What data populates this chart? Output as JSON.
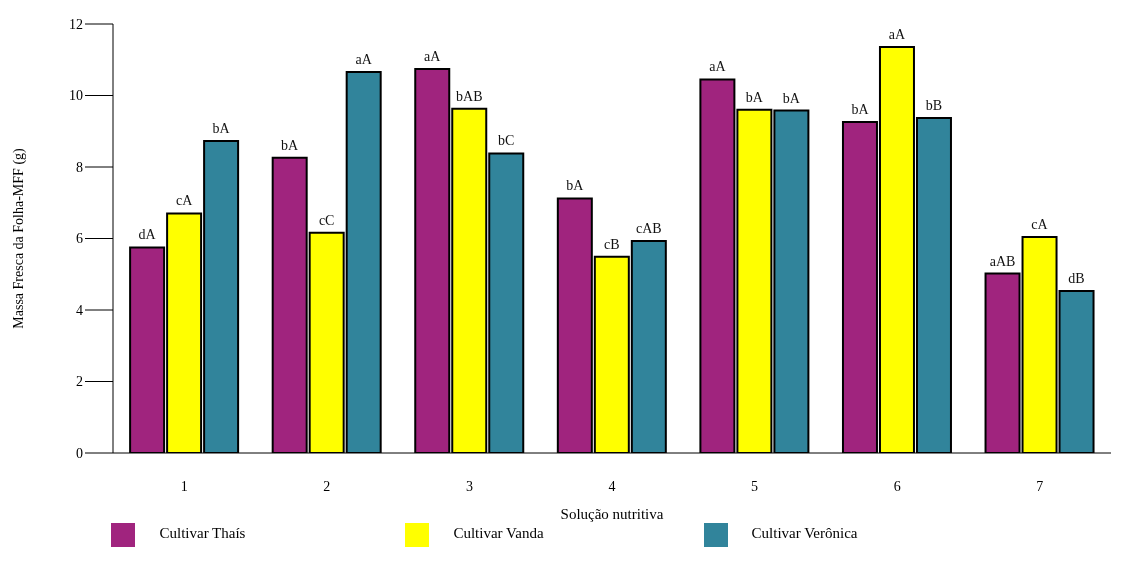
{
  "chart_data": {
    "type": "bar",
    "xlabel": "Solução nutritiva",
    "ylabel": "Massa Fresca da Folha-MFF (g)",
    "categories": [
      "1",
      "2",
      "3",
      "4",
      "5",
      "6",
      "7"
    ],
    "series": [
      {
        "name": "Cultivar Thaís",
        "color": "#a0247e",
        "values": [
          5.75,
          8.26,
          10.74,
          7.12,
          10.45,
          9.26,
          5.02
        ],
        "value_labels": [
          "dA",
          "bA",
          "aA",
          "bA",
          "aA",
          "bA",
          "aAB"
        ]
      },
      {
        "name": "Cultivar Vanda",
        "color": "#ffff00",
        "values": [
          6.7,
          6.16,
          9.63,
          5.49,
          9.6,
          11.36,
          6.04
        ],
        "value_labels": [
          "cA",
          "cC",
          "bAB",
          "cB",
          "bA",
          "aA",
          "cA"
        ]
      },
      {
        "name": "Cultivar Verônica",
        "color": "#31849b",
        "values": [
          8.73,
          10.66,
          8.38,
          5.93,
          9.58,
          9.37,
          4.53
        ],
        "value_labels": [
          "bA",
          "aA",
          "bC",
          "cAB",
          "bA",
          "bB",
          "dB"
        ]
      }
    ],
    "ylim": [
      0,
      12
    ],
    "yticks": [
      0,
      2,
      4,
      6,
      8,
      10,
      12
    ],
    "grid": false,
    "legend": "bottom"
  }
}
